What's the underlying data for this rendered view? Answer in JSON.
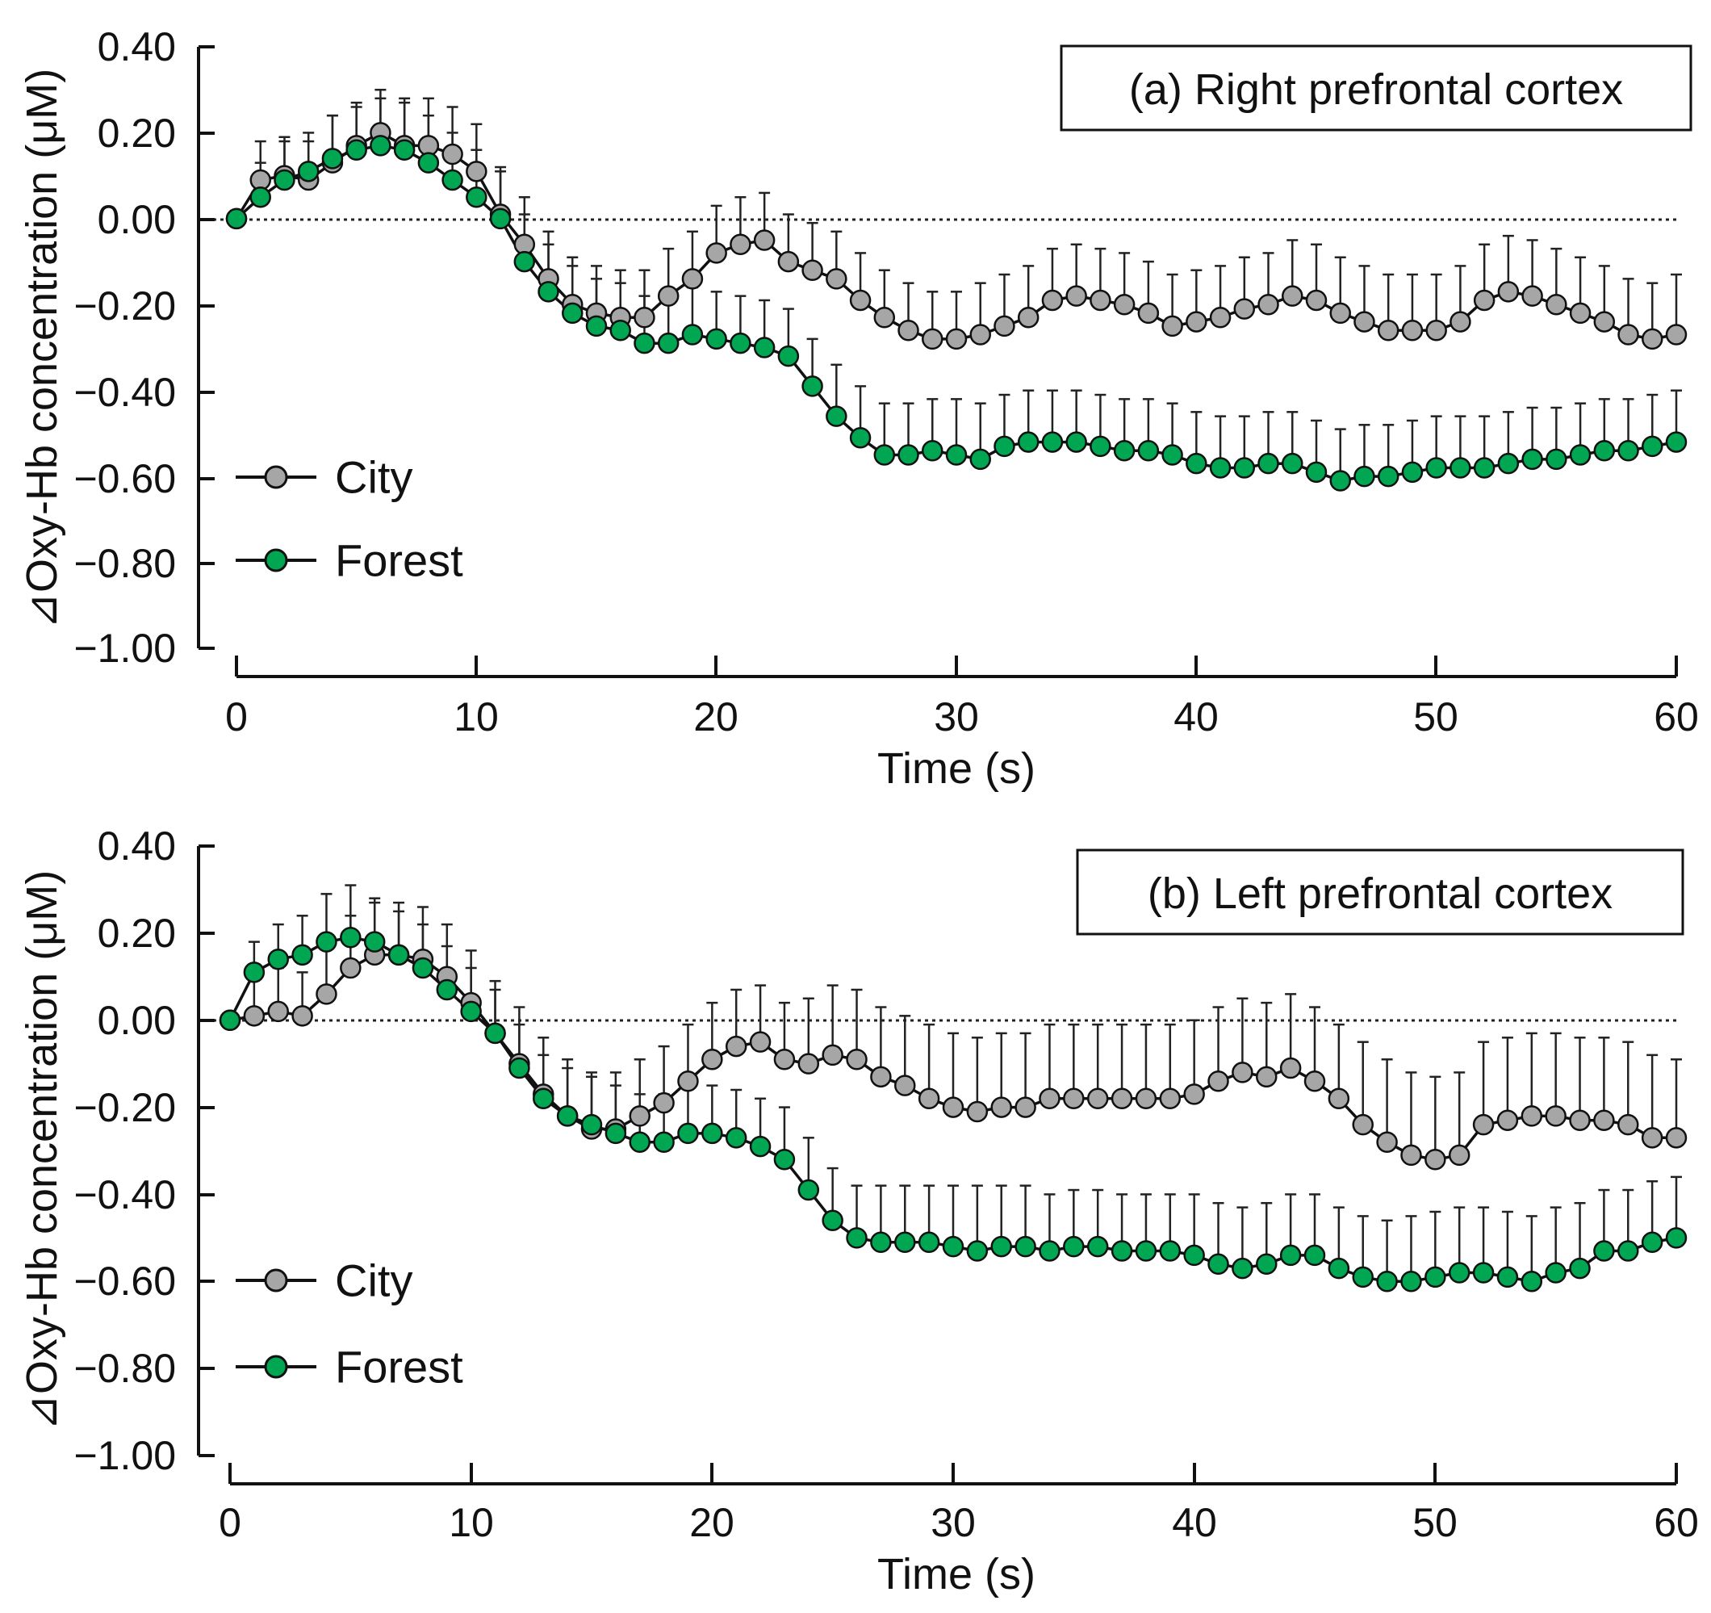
{
  "figure": {
    "colors": {
      "city": "#a6a6a6",
      "forest": "#00a651",
      "ink": "#111111"
    }
  },
  "chart_data": [
    {
      "type": "line",
      "title": "(a) Right prefrontal cortex",
      "xlabel": "Time (s)",
      "ylabel": "⊿Oxy-Hb concentration (μM)",
      "xlim": [
        0,
        60
      ],
      "ylim": [
        -1.0,
        0.4
      ],
      "xticks": [
        0,
        10,
        20,
        30,
        40,
        50,
        60
      ],
      "xtick_labels": [
        "0",
        "10",
        "20",
        "30",
        "40",
        "50",
        "60"
      ],
      "yticks": [
        0.4,
        0.2,
        0.0,
        -0.2,
        -0.4,
        -0.6,
        -0.8,
        -1.0
      ],
      "ytick_labels": [
        "0.40",
        "0.20",
        "0.00",
        "−0.20",
        "−0.40",
        "−0.60",
        "−0.80",
        "−1.00"
      ],
      "reference_line": 0.0,
      "legend": "left",
      "series": [
        {
          "name": "City",
          "color": "#a6a6a6",
          "values": [
            0.0,
            0.09,
            0.1,
            0.09,
            0.13,
            0.17,
            0.2,
            0.17,
            0.17,
            0.15,
            0.11,
            0.01,
            -0.06,
            -0.14,
            -0.2,
            -0.22,
            -0.23,
            -0.23,
            -0.18,
            -0.14,
            -0.08,
            -0.06,
            -0.05,
            -0.1,
            -0.12,
            -0.14,
            -0.19,
            -0.23,
            -0.26,
            -0.28,
            -0.28,
            -0.27,
            -0.25,
            -0.23,
            -0.19,
            -0.18,
            -0.19,
            -0.2,
            -0.22,
            -0.25,
            -0.24,
            -0.23,
            -0.21,
            -0.2,
            -0.18,
            -0.19,
            -0.22,
            -0.24,
            -0.26,
            -0.26,
            -0.26,
            -0.24,
            -0.19,
            -0.17,
            -0.18,
            -0.2,
            -0.22,
            -0.24,
            -0.27,
            -0.28,
            -0.27
          ],
          "errors": [
            0.0,
            0.09,
            0.09,
            0.09,
            0.11,
            0.1,
            0.1,
            0.11,
            0.11,
            0.11,
            0.11,
            0.11,
            0.11,
            0.11,
            0.11,
            0.11,
            0.11,
            0.11,
            0.11,
            0.11,
            0.11,
            0.11,
            0.11,
            0.11,
            0.11,
            0.11,
            0.11,
            0.11,
            0.11,
            0.11,
            0.11,
            0.12,
            0.12,
            0.12,
            0.12,
            0.12,
            0.12,
            0.12,
            0.12,
            0.12,
            0.12,
            0.12,
            0.12,
            0.12,
            0.13,
            0.13,
            0.13,
            0.13,
            0.13,
            0.13,
            0.13,
            0.13,
            0.13,
            0.13,
            0.13,
            0.13,
            0.13,
            0.13,
            0.13,
            0.13,
            0.14
          ]
        },
        {
          "name": "Forest",
          "color": "#00a651",
          "values": [
            0.0,
            0.05,
            0.09,
            0.11,
            0.14,
            0.16,
            0.17,
            0.16,
            0.13,
            0.09,
            0.05,
            0.0,
            -0.1,
            -0.17,
            -0.22,
            -0.25,
            -0.26,
            -0.29,
            -0.29,
            -0.27,
            -0.28,
            -0.29,
            -0.3,
            -0.32,
            -0.39,
            -0.46,
            -0.51,
            -0.55,
            -0.55,
            -0.54,
            -0.55,
            -0.56,
            -0.53,
            -0.52,
            -0.52,
            -0.52,
            -0.53,
            -0.54,
            -0.54,
            -0.55,
            -0.57,
            -0.58,
            -0.58,
            -0.57,
            -0.57,
            -0.59,
            -0.61,
            -0.6,
            -0.6,
            -0.59,
            -0.58,
            -0.58,
            -0.58,
            -0.57,
            -0.56,
            -0.56,
            -0.55,
            -0.54,
            -0.54,
            -0.53,
            -0.52
          ],
          "errors": [
            0.0,
            0.08,
            0.09,
            0.09,
            0.1,
            0.1,
            0.11,
            0.11,
            0.11,
            0.11,
            0.11,
            0.11,
            0.11,
            0.11,
            0.11,
            0.11,
            0.11,
            0.11,
            0.11,
            0.11,
            0.11,
            0.11,
            0.11,
            0.11,
            0.11,
            0.12,
            0.12,
            0.12,
            0.12,
            0.12,
            0.13,
            0.13,
            0.12,
            0.12,
            0.12,
            0.12,
            0.12,
            0.12,
            0.12,
            0.12,
            0.12,
            0.12,
            0.12,
            0.12,
            0.12,
            0.12,
            0.12,
            0.12,
            0.12,
            0.12,
            0.12,
            0.12,
            0.12,
            0.12,
            0.12,
            0.12,
            0.12,
            0.12,
            0.12,
            0.12,
            0.12
          ]
        }
      ]
    },
    {
      "type": "line",
      "title": "(b) Left prefrontal cortex",
      "xlabel": "Time (s)",
      "ylabel": "⊿Oxy-Hb concentration (μM)",
      "xlim": [
        0,
        60
      ],
      "ylim": [
        -1.0,
        0.4
      ],
      "xticks": [
        0,
        10,
        20,
        30,
        40,
        50,
        60
      ],
      "xtick_labels": [
        "0",
        "10",
        "20",
        "30",
        "40",
        "50",
        "60"
      ],
      "yticks": [
        0.4,
        0.2,
        0.0,
        -0.2,
        -0.4,
        -0.6,
        -0.8,
        -1.0
      ],
      "ytick_labels": [
        "0.40",
        "0.20",
        "0.00",
        "−0.20",
        "−0.40",
        "−0.60",
        "−0.80",
        "−1.00"
      ],
      "reference_line": 0.0,
      "legend": "left",
      "series": [
        {
          "name": "City",
          "color": "#a6a6a6",
          "values": [
            0.0,
            0.01,
            0.02,
            0.01,
            0.06,
            0.12,
            0.15,
            0.15,
            0.14,
            0.1,
            0.04,
            -0.03,
            -0.1,
            -0.17,
            -0.22,
            -0.25,
            -0.25,
            -0.22,
            -0.19,
            -0.14,
            -0.09,
            -0.06,
            -0.05,
            -0.09,
            -0.1,
            -0.08,
            -0.09,
            -0.13,
            -0.15,
            -0.18,
            -0.2,
            -0.21,
            -0.2,
            -0.2,
            -0.18,
            -0.18,
            -0.18,
            -0.18,
            -0.18,
            -0.18,
            -0.17,
            -0.14,
            -0.12,
            -0.13,
            -0.11,
            -0.14,
            -0.18,
            -0.24,
            -0.28,
            -0.31,
            -0.32,
            -0.31,
            -0.24,
            -0.23,
            -0.22,
            -0.22,
            -0.23,
            -0.23,
            -0.24,
            -0.27,
            -0.27
          ],
          "errors": [
            0.0,
            0.09,
            0.1,
            0.1,
            0.11,
            0.12,
            0.12,
            0.12,
            0.12,
            0.12,
            0.12,
            0.12,
            0.13,
            0.13,
            0.13,
            0.13,
            0.13,
            0.13,
            0.13,
            0.13,
            0.13,
            0.13,
            0.13,
            0.13,
            0.15,
            0.16,
            0.16,
            0.16,
            0.16,
            0.17,
            0.17,
            0.17,
            0.17,
            0.17,
            0.17,
            0.17,
            0.17,
            0.17,
            0.17,
            0.17,
            0.17,
            0.17,
            0.17,
            0.17,
            0.17,
            0.17,
            0.17,
            0.19,
            0.19,
            0.19,
            0.19,
            0.19,
            0.19,
            0.19,
            0.19,
            0.19,
            0.19,
            0.19,
            0.19,
            0.19,
            0.18
          ]
        },
        {
          "name": "Forest",
          "color": "#00a651",
          "values": [
            0.0,
            0.11,
            0.14,
            0.15,
            0.18,
            0.19,
            0.18,
            0.15,
            0.12,
            0.07,
            0.02,
            -0.03,
            -0.11,
            -0.18,
            -0.22,
            -0.24,
            -0.26,
            -0.28,
            -0.28,
            -0.26,
            -0.26,
            -0.27,
            -0.29,
            -0.32,
            -0.39,
            -0.46,
            -0.5,
            -0.51,
            -0.51,
            -0.51,
            -0.52,
            -0.53,
            -0.52,
            -0.52,
            -0.53,
            -0.52,
            -0.52,
            -0.53,
            -0.53,
            -0.53,
            -0.54,
            -0.56,
            -0.57,
            -0.56,
            -0.54,
            -0.54,
            -0.57,
            -0.59,
            -0.6,
            -0.6,
            -0.59,
            -0.58,
            -0.58,
            -0.59,
            -0.6,
            -0.58,
            -0.57,
            -0.53,
            -0.53,
            -0.51,
            -0.5
          ],
          "errors": [
            0.0,
            0.07,
            0.08,
            0.09,
            0.11,
            0.12,
            0.1,
            0.1,
            0.1,
            0.1,
            0.1,
            0.1,
            0.1,
            0.1,
            0.11,
            0.11,
            0.11,
            0.11,
            0.11,
            0.11,
            0.11,
            0.11,
            0.11,
            0.12,
            0.12,
            0.12,
            0.12,
            0.13,
            0.13,
            0.13,
            0.14,
            0.15,
            0.14,
            0.14,
            0.13,
            0.13,
            0.13,
            0.13,
            0.13,
            0.13,
            0.14,
            0.14,
            0.14,
            0.14,
            0.14,
            0.14,
            0.14,
            0.14,
            0.14,
            0.15,
            0.15,
            0.15,
            0.15,
            0.15,
            0.15,
            0.15,
            0.15,
            0.14,
            0.14,
            0.14,
            0.14
          ]
        }
      ]
    }
  ]
}
